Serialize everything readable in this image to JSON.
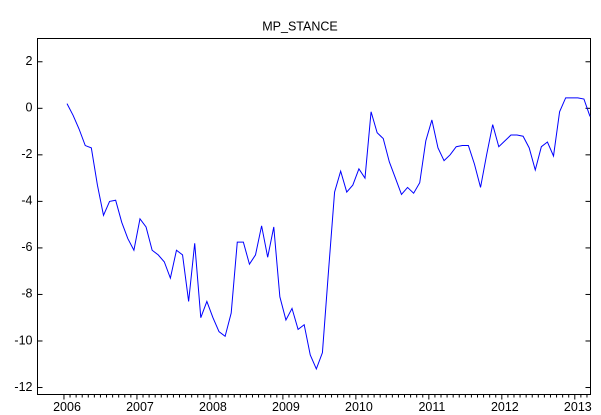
{
  "chart_data": {
    "type": "line",
    "title": "MP_STANCE",
    "categories": [
      "2006",
      null,
      null,
      null,
      null,
      null,
      null,
      null,
      null,
      null,
      null,
      null,
      "2007",
      null,
      null,
      null,
      null,
      null,
      null,
      null,
      null,
      null,
      null,
      null,
      "2008",
      null,
      null,
      null,
      null,
      null,
      null,
      null,
      null,
      null,
      null,
      null,
      "2009",
      null,
      null,
      null,
      null,
      null,
      null,
      null,
      null,
      null,
      null,
      null,
      "2010",
      null,
      null,
      null,
      null,
      null,
      null,
      null,
      null,
      null,
      null,
      null,
      "2011",
      null,
      null,
      null,
      null,
      null,
      null,
      null,
      null,
      null,
      null,
      null,
      "2012",
      null,
      null,
      null,
      null,
      null,
      null,
      null,
      null,
      null,
      null,
      null,
      "2013",
      null,
      null
    ],
    "series": [
      {
        "name": "MP_STANCE",
        "color": "#0000ff",
        "values": [
          0.2,
          -0.3,
          -0.9,
          -1.6,
          -1.7,
          -3.3,
          -4.6,
          -4.0,
          -3.95,
          -4.9,
          -5.6,
          -6.1,
          -4.75,
          -5.1,
          -6.1,
          -6.3,
          -6.6,
          -7.3,
          -6.1,
          -6.3,
          -8.3,
          -5.8,
          -9.0,
          -8.3,
          -9.0,
          -9.6,
          -9.8,
          -8.8,
          -5.75,
          -5.75,
          -6.7,
          -6.3,
          -5.05,
          -6.4,
          -5.1,
          -8.1,
          -9.1,
          -8.6,
          -9.5,
          -9.3,
          -10.6,
          -11.2,
          -10.5,
          -7.0,
          -3.6,
          -2.7,
          -3.6,
          -3.3,
          -2.6,
          -3.0,
          -0.15,
          -1.05,
          -1.3,
          -2.3,
          -3.0,
          -3.7,
          -3.4,
          -3.65,
          -3.2,
          -1.4,
          -0.5,
          -1.7,
          -2.25,
          -2.0,
          -1.65,
          -1.6,
          -1.6,
          -2.4,
          -3.4,
          -2.0,
          -0.7,
          -1.65,
          -1.4,
          -1.15,
          -1.15,
          -1.2,
          -1.7,
          -2.65,
          -1.65,
          -1.45,
          -2.05,
          -0.15,
          0.45,
          0.45,
          0.45,
          0.4,
          -0.35
        ]
      }
    ],
    "ylim": [
      -12.3,
      3
    ],
    "yticks": [
      2,
      0,
      -2,
      -4,
      -6,
      -8,
      -10,
      -12
    ],
    "grid": false
  }
}
